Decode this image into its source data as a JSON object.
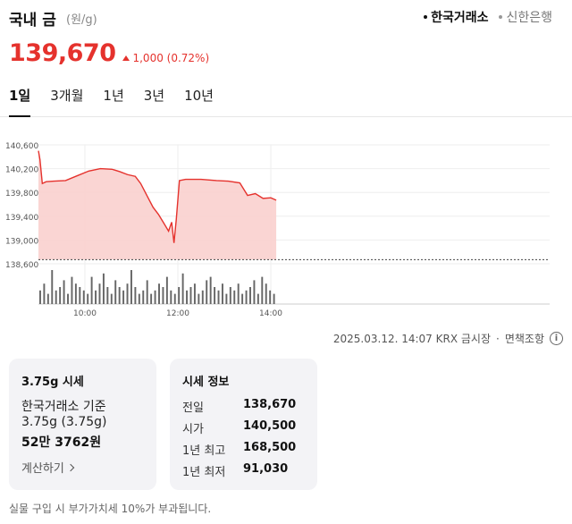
{
  "header": {
    "title": "국내 금",
    "unit": "(원/g)",
    "sources": [
      {
        "label": "한국거래소",
        "active": true
      },
      {
        "label": "신한은행",
        "active": false
      }
    ]
  },
  "price": {
    "current": "139,670",
    "change": "1,000 (0.72%)",
    "direction": "up",
    "color": "#e5322d"
  },
  "period_tabs": [
    {
      "label": "1일",
      "active": true
    },
    {
      "label": "3개월",
      "active": false
    },
    {
      "label": "1년",
      "active": false
    },
    {
      "label": "3년",
      "active": false
    },
    {
      "label": "10년",
      "active": false
    }
  ],
  "chart_data": {
    "type": "area",
    "y_ticks": [
      "140,600",
      "140,200",
      "139,800",
      "139,400",
      "139,000",
      "138,600"
    ],
    "x_ticks": [
      "10:00",
      "12:00",
      "14:00"
    ],
    "baseline": 138670,
    "ylim": [
      138600,
      140600
    ],
    "xlim_minutes": [
      540,
      1200
    ],
    "line_color": "#e5322d",
    "fill_color": "#f9d0ce",
    "price_series": [
      {
        "t": "09:00",
        "v": 140500
      },
      {
        "t": "09:02",
        "v": 140350
      },
      {
        "t": "09:05",
        "v": 139950
      },
      {
        "t": "09:10",
        "v": 139980
      },
      {
        "t": "09:20",
        "v": 139990
      },
      {
        "t": "09:35",
        "v": 140000
      },
      {
        "t": "09:50",
        "v": 140080
      },
      {
        "t": "10:05",
        "v": 140160
      },
      {
        "t": "10:20",
        "v": 140200
      },
      {
        "t": "10:35",
        "v": 140190
      },
      {
        "t": "10:45",
        "v": 140150
      },
      {
        "t": "10:55",
        "v": 140100
      },
      {
        "t": "11:05",
        "v": 140070
      },
      {
        "t": "11:12",
        "v": 139950
      },
      {
        "t": "11:20",
        "v": 139750
      },
      {
        "t": "11:28",
        "v": 139550
      },
      {
        "t": "11:35",
        "v": 139430
      },
      {
        "t": "11:42",
        "v": 139280
      },
      {
        "t": "11:48",
        "v": 139150
      },
      {
        "t": "11:52",
        "v": 139300
      },
      {
        "t": "11:55",
        "v": 138950
      },
      {
        "t": "11:58",
        "v": 139350
      },
      {
        "t": "12:02",
        "v": 140000
      },
      {
        "t": "12:10",
        "v": 140020
      },
      {
        "t": "12:30",
        "v": 140020
      },
      {
        "t": "12:50",
        "v": 140000
      },
      {
        "t": "13:05",
        "v": 139990
      },
      {
        "t": "13:20",
        "v": 139960
      },
      {
        "t": "13:30",
        "v": 139750
      },
      {
        "t": "13:40",
        "v": 139780
      },
      {
        "t": "13:50",
        "v": 139700
      },
      {
        "t": "14:00",
        "v": 139710
      },
      {
        "t": "14:07",
        "v": 139670
      }
    ],
    "volume_bars": [
      4,
      6,
      3,
      10,
      4,
      5,
      7,
      3,
      8,
      6,
      5,
      4,
      3,
      8,
      4,
      6,
      9,
      5,
      3,
      7,
      5,
      4,
      6,
      10,
      5,
      3,
      4,
      7,
      3,
      4,
      6,
      5,
      8,
      4,
      3,
      5,
      9,
      4,
      5,
      6,
      3,
      4,
      7,
      8,
      5,
      4,
      6,
      3,
      5,
      4,
      6,
      3,
      4,
      5,
      7,
      3,
      8,
      6,
      4,
      3
    ]
  },
  "meta": {
    "timestamp": "2025.03.12. 14:07 KRX 금시장",
    "disclaimer": "면책조항",
    "info_icon": "i"
  },
  "card_unit": {
    "title": "3.75g 시세",
    "line1": "한국거래소 기준",
    "line2": "3.75g (3.75g)",
    "line3": "52만 3762원",
    "link": "계산하기"
  },
  "card_info": {
    "title": "시세 정보",
    "rows": [
      {
        "k": "전일",
        "v": "138,670"
      },
      {
        "k": "시가",
        "v": "140,500"
      },
      {
        "k": "1년 최고",
        "v": "168,500"
      },
      {
        "k": "1년 최저",
        "v": "91,030"
      }
    ]
  },
  "footnote": "실물 구입 시 부가가치세 10%가 부과됩니다."
}
